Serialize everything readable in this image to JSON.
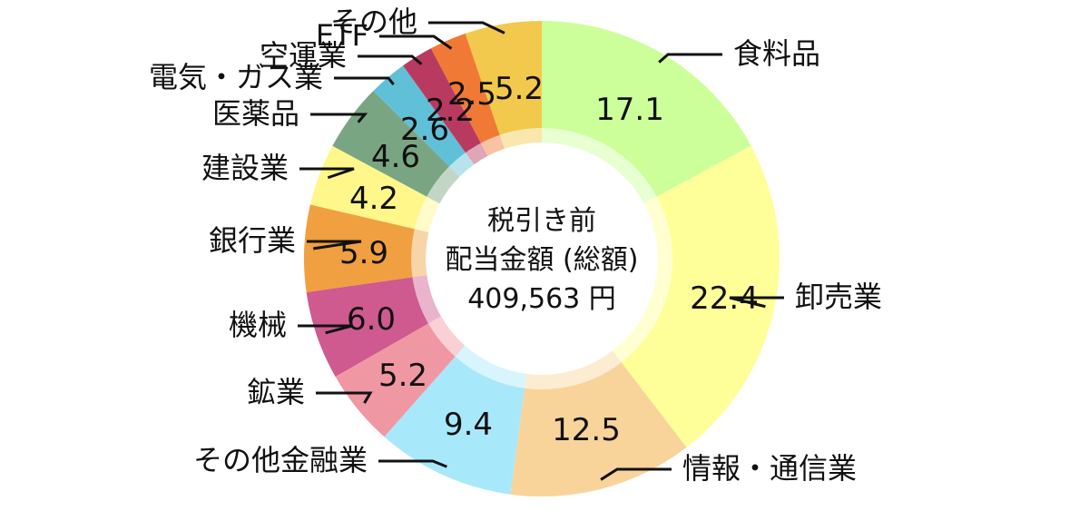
{
  "chart_data": {
    "type": "pie",
    "variant": "donut",
    "center": {
      "line1": "税引き前",
      "line2": "配当金額 (総額)",
      "line3": "409,563 円"
    },
    "slices": [
      {
        "label": "食料品",
        "value": 17.1,
        "value_label": "17.1",
        "color": "#ccff99"
      },
      {
        "label": "卸売業",
        "value": 22.4,
        "value_label": "22.4",
        "color": "#ffff99"
      },
      {
        "label": "情報・通信業",
        "value": 12.5,
        "value_label": "12.5",
        "color": "#f9d49a"
      },
      {
        "label": "その他金融業",
        "value": 9.4,
        "value_label": "9.4",
        "color": "#a8e8fb"
      },
      {
        "label": "鉱業",
        "value": 5.2,
        "value_label": "5.2",
        "color": "#f097a4"
      },
      {
        "label": "機械",
        "value": 6.0,
        "value_label": "6.0",
        "color": "#cf5a8f"
      },
      {
        "label": "銀行業",
        "value": 5.9,
        "value_label": "5.9",
        "color": "#f0a040"
      },
      {
        "label": "建設業",
        "value": 4.2,
        "value_label": "4.2",
        "color": "#fff78a"
      },
      {
        "label": "医薬品",
        "value": 4.6,
        "value_label": "4.6",
        "color": "#7aa582"
      },
      {
        "label": "電気・ガス業",
        "value": 2.6,
        "value_label": "2.6",
        "color": "#60c0d8"
      },
      {
        "label": "空運業",
        "value": 2.2,
        "value_label": "2.2",
        "color": "#b83a60"
      },
      {
        "label": "ETF",
        "value": 2.5,
        "value_label": "2.5",
        "color": "#f07a35"
      },
      {
        "label": "その他",
        "value": 5.2,
        "value_label": "5.2",
        "color": "#f2c94c"
      }
    ]
  }
}
